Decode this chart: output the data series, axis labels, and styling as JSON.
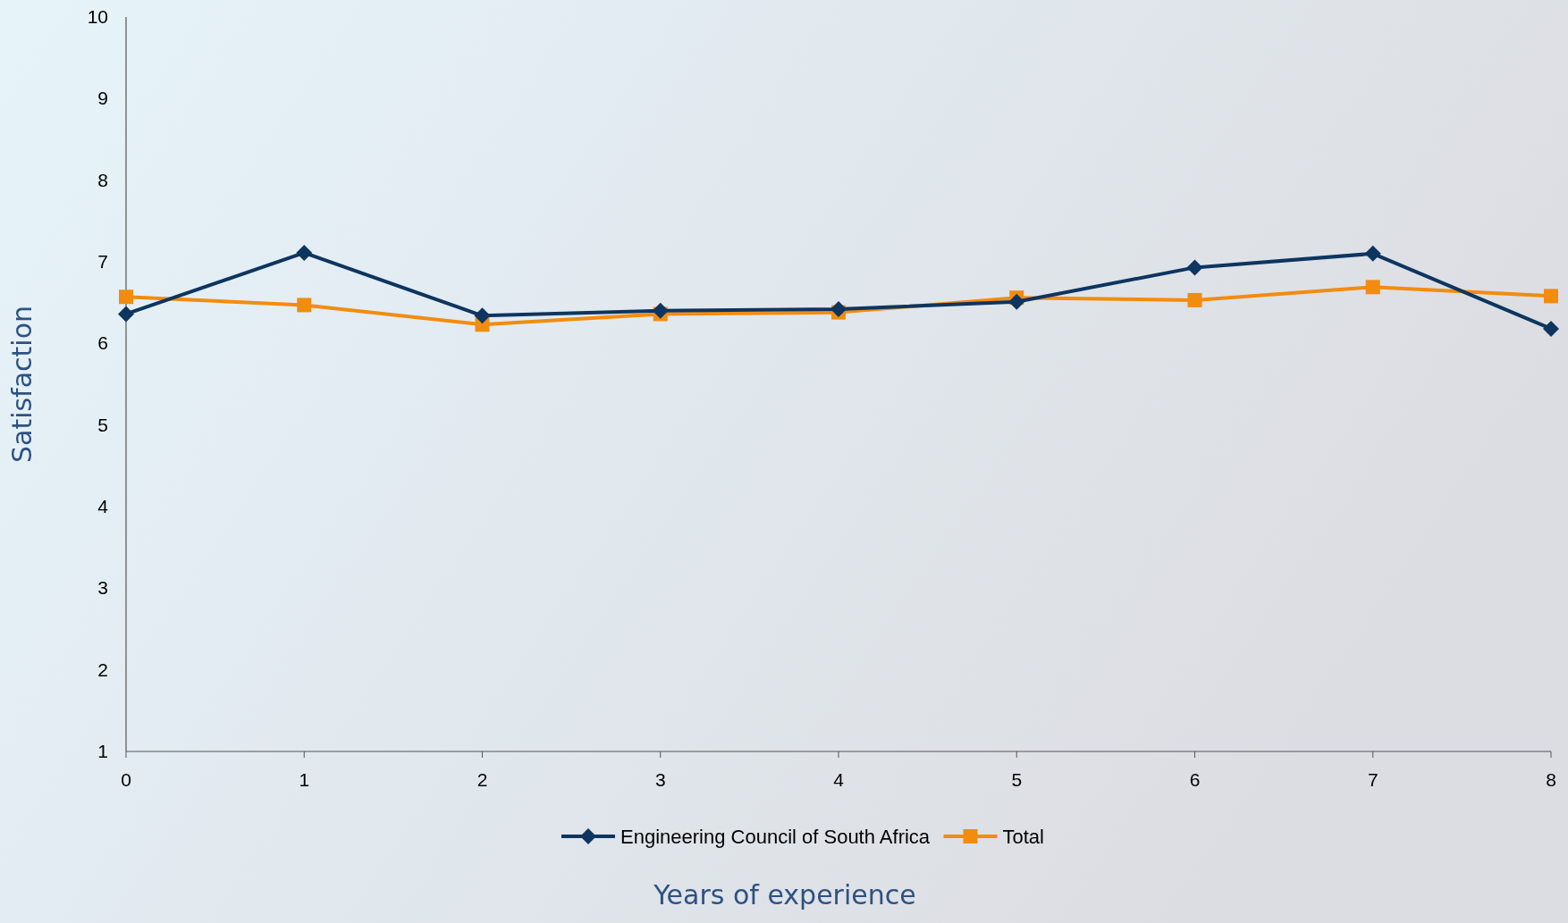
{
  "chart_data": {
    "type": "line",
    "xlabel": "Years of experience",
    "ylabel": "Satisfaction",
    "x": [
      0,
      1,
      2,
      3,
      4,
      5,
      6,
      7,
      8
    ],
    "xlim": [
      0,
      8
    ],
    "xticks": [
      0,
      1,
      2,
      3,
      4,
      5,
      6,
      7,
      8
    ],
    "ylim": [
      1,
      10
    ],
    "yticks": [
      1,
      2,
      3,
      4,
      5,
      6,
      7,
      8,
      9,
      10
    ],
    "grid": false,
    "legend": "bottom",
    "line_style": "solid",
    "series": [
      {
        "name": "Engineering Council of South Africa",
        "color": "#0e3560",
        "marker": "diamond",
        "values": [
          6.36,
          7.11,
          6.34,
          6.4,
          6.42,
          6.51,
          6.93,
          7.1,
          6.18
        ]
      },
      {
        "name": "Total",
        "color": "#f28c0f",
        "marker": "square",
        "values": [
          6.57,
          6.47,
          6.23,
          6.36,
          6.38,
          6.56,
          6.53,
          6.69,
          6.58
        ]
      }
    ]
  }
}
